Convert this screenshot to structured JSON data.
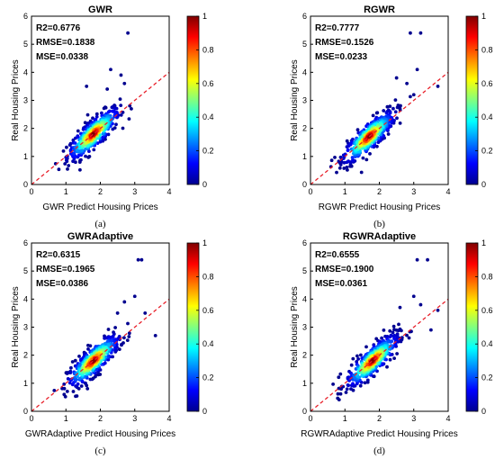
{
  "colors": {
    "ref_line": "#e8202a",
    "axis": "#000000",
    "jet": [
      "#00008f",
      "#0000ff",
      "#0080ff",
      "#00ffff",
      "#80ff80",
      "#ffff00",
      "#ff8000",
      "#ff0000",
      "#800000"
    ]
  },
  "chart_data": [
    {
      "type": "scatter",
      "title": "GWR",
      "xlabel": "GWR Predict Housing Prices",
      "ylabel": "Real Housing Prices",
      "caption": "(a)",
      "stats": [
        "R2=0.6776",
        "RMSE=0.1838",
        "MSE=0.0338"
      ],
      "xlim": [
        0,
        4
      ],
      "ylim": [
        0,
        6
      ],
      "xticks": [
        "0",
        "1",
        "2",
        "3",
        "4"
      ],
      "yticks": [
        "0",
        "1",
        "2",
        "3",
        "4",
        "5",
        "6"
      ],
      "reference_line": "y = x",
      "colorbar": {
        "range": [
          0,
          1
        ],
        "ticks": [
          "0",
          "0.2",
          "0.4",
          "0.6",
          "0.8",
          "1"
        ],
        "colormap": "jet"
      },
      "density_center": [
        1.8,
        1.8
      ],
      "outliers": [
        [
          2.8,
          5.4
        ],
        [
          2.3,
          4.1
        ],
        [
          2.6,
          3.9
        ],
        [
          1.6,
          3.5
        ],
        [
          2.9,
          2.7
        ],
        [
          2.2,
          3.4
        ],
        [
          2.7,
          3.6
        ]
      ]
    },
    {
      "type": "scatter",
      "title": "RGWR",
      "xlabel": "RGWR Predict Housing Prices",
      "ylabel": "Real Housing Prices",
      "caption": "(b)",
      "stats": [
        "R2=0.7777",
        "RMSE=0.1526",
        "MSE=0.0233"
      ],
      "xlim": [
        0,
        4
      ],
      "ylim": [
        0,
        6
      ],
      "xticks": [
        "0",
        "1",
        "2",
        "3",
        "4"
      ],
      "yticks": [
        "0",
        "1",
        "2",
        "3",
        "4",
        "5",
        "6"
      ],
      "reference_line": "y = x",
      "colorbar": {
        "range": [
          0,
          1
        ],
        "ticks": [
          "0",
          "0.2",
          "0.4",
          "0.6",
          "0.8",
          "1"
        ],
        "colormap": "jet"
      },
      "density_center": [
        1.7,
        1.7
      ],
      "outliers": [
        [
          2.9,
          5.4
        ],
        [
          3.2,
          5.4
        ],
        [
          3.1,
          4.1
        ],
        [
          3.7,
          3.5
        ],
        [
          2.5,
          3.8
        ],
        [
          3.0,
          3.2
        ],
        [
          2.8,
          3.6
        ]
      ]
    },
    {
      "type": "scatter",
      "title": "GWRAdaptive",
      "xlabel": "GWRAdaptive Predict Housing Prices",
      "ylabel": "Real Housing Prices",
      "caption": "(c)",
      "stats": [
        "R2=0.6315",
        "RMSE=0.1965",
        "MSE=0.0386"
      ],
      "xlim": [
        0,
        4
      ],
      "ylim": [
        0,
        6
      ],
      "xticks": [
        "0",
        "1",
        "2",
        "3",
        "4"
      ],
      "yticks": [
        "0",
        "1",
        "2",
        "3",
        "4",
        "5",
        "6"
      ],
      "reference_line": "y = x",
      "colorbar": {
        "range": [
          0,
          1
        ],
        "ticks": [
          "0",
          "0.2",
          "0.4",
          "0.6",
          "0.8",
          "1"
        ],
        "colormap": "jet"
      },
      "density_center": [
        1.8,
        1.8
      ],
      "outliers": [
        [
          3.1,
          5.4
        ],
        [
          3.2,
          5.4
        ],
        [
          3.0,
          4.1
        ],
        [
          2.7,
          3.9
        ],
        [
          3.3,
          3.5
        ],
        [
          3.6,
          2.7
        ],
        [
          2.5,
          3.5
        ]
      ]
    },
    {
      "type": "scatter",
      "title": "RGWRAdaptive",
      "xlabel": "RGWRAdaptive Predict Housing Prices",
      "ylabel": "Real Housing Prices",
      "caption": "(d)",
      "stats": [
        "R2=0.6555",
        "RMSE=0.1900",
        "MSE=0.0361"
      ],
      "xlim": [
        0,
        4
      ],
      "ylim": [
        0,
        6
      ],
      "xticks": [
        "0",
        "1",
        "2",
        "3",
        "4"
      ],
      "yticks": [
        "0",
        "1",
        "2",
        "3",
        "4",
        "5",
        "6"
      ],
      "reference_line": "y = x",
      "colorbar": {
        "range": [
          0,
          1
        ],
        "ticks": [
          "0",
          "0.2",
          "0.4",
          "0.6",
          "0.8",
          "1"
        ],
        "colormap": "jet"
      },
      "density_center": [
        1.8,
        1.8
      ],
      "outliers": [
        [
          3.1,
          5.4
        ],
        [
          3.4,
          5.4
        ],
        [
          3.0,
          4.1
        ],
        [
          3.2,
          3.8
        ],
        [
          3.7,
          3.6
        ],
        [
          2.6,
          3.7
        ],
        [
          3.5,
          2.9
        ]
      ]
    }
  ]
}
